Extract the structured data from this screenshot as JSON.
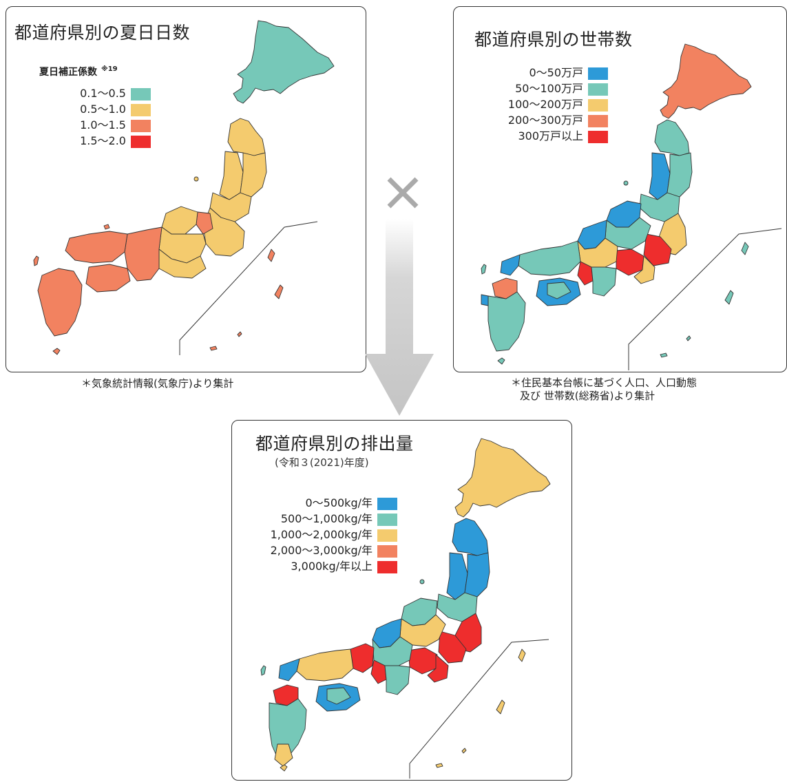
{
  "colors": {
    "blue": "#2d9ad8",
    "teal": "#76c8b8",
    "yellow": "#f4cb6e",
    "orange": "#f28260",
    "red": "#ee2d2d",
    "border": "#333333",
    "arrow": "#c8c8c8",
    "times": "#aaaaaa"
  },
  "panels": {
    "summer_days": {
      "title": "都道府県別の夏日日数",
      "legend_heading": "夏日補正係数",
      "legend_note": "※19",
      "legend": [
        {
          "label": "0.1～0.5",
          "color": "#76c8b8"
        },
        {
          "label": "0.5～1.0",
          "color": "#f4cb6e"
        },
        {
          "label": "1.0～1.5",
          "color": "#f28260"
        },
        {
          "label": "1.5～2.0",
          "color": "#ee2d2d"
        }
      ],
      "source_note": "＊気象統計情報(気象庁)より集計"
    },
    "households": {
      "title": "都道府県別の世帯数",
      "legend": [
        {
          "label": "0～50万戸",
          "color": "#2d9ad8"
        },
        {
          "label": "50～100万戸",
          "color": "#76c8b8"
        },
        {
          "label": "100～200万戸",
          "color": "#f4cb6e"
        },
        {
          "label": "200～300万戸",
          "color": "#f28260"
        },
        {
          "label": "300万戸以上",
          "color": "#ee2d2d"
        }
      ],
      "source_note_line1": "＊住民基本台帳に基づく人口、人口動態",
      "source_note_line2": "及び 世帯数(総務省)より集計"
    },
    "emissions": {
      "title": "都道府県別の排出量",
      "subtitle": "(令和３(2021)年度)",
      "legend": [
        {
          "label": "0～500kg/年",
          "color": "#2d9ad8"
        },
        {
          "label": "500～1,000kg/年",
          "color": "#76c8b8"
        },
        {
          "label": "1,000～2,000kg/年",
          "color": "#f4cb6e"
        },
        {
          "label": "2,000～3,000kg/年",
          "color": "#f28260"
        },
        {
          "label": "3,000kg/年以上",
          "color": "#ee2d2d"
        }
      ]
    }
  },
  "operators": {
    "times": "multiply-icon",
    "arrow": "down-arrow-icon"
  }
}
